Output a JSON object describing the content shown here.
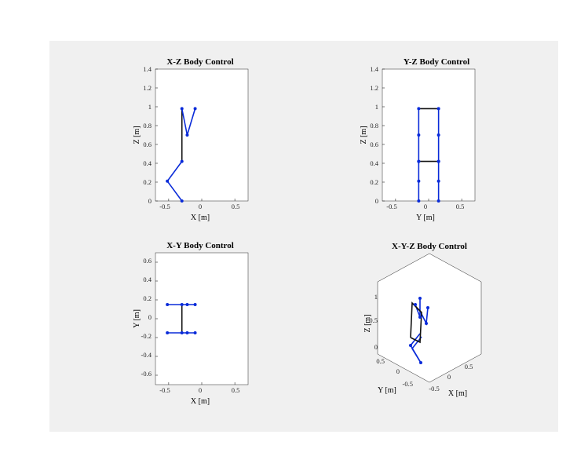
{
  "colors": {
    "legs": "#0a2bd9",
    "body": "#111111",
    "panel": "#f0f0f0"
  },
  "chart_data": [
    {
      "type": "line",
      "title": "X-Z Body Control",
      "xlabel": "X [m]",
      "ylabel": "Z [m]",
      "xlim": [
        -0.7,
        0.7
      ],
      "ylim": [
        0,
        1.4
      ],
      "xticks": [
        -0.5,
        0,
        0.5
      ],
      "xtick_labels": [
        "-0.5",
        "0",
        "0.5"
      ],
      "yticks": [
        0,
        0.2,
        0.4,
        0.6,
        0.8,
        1,
        1.2,
        1.4
      ],
      "ytick_labels": [
        "0",
        "0.2",
        "0.4",
        "0.6",
        "0.8",
        "1",
        "1.2",
        "1.4"
      ],
      "segments": [
        {
          "kind": "leg",
          "points": [
            [
              -0.3,
              0
            ],
            [
              -0.52,
              0.21
            ],
            [
              -0.3,
              0.42
            ]
          ]
        },
        {
          "kind": "body",
          "points": [
            [
              -0.3,
              0.42
            ],
            [
              -0.3,
              0.98
            ]
          ]
        },
        {
          "kind": "leg",
          "points": [
            [
              -0.3,
              0.98
            ],
            [
              -0.22,
              0.7
            ],
            [
              -0.1,
              0.98
            ]
          ]
        }
      ]
    },
    {
      "type": "line",
      "title": "Y-Z Body Control",
      "xlabel": "Y [m]",
      "ylabel": "Z [m]",
      "xlim": [
        -0.7,
        0.7
      ],
      "ylim": [
        0,
        1.4
      ],
      "xticks": [
        -0.5,
        0,
        0.5
      ],
      "xtick_labels": [
        "-0.5",
        "0",
        "0.5"
      ],
      "yticks": [
        0,
        0.2,
        0.4,
        0.6,
        0.8,
        1,
        1.2,
        1.4
      ],
      "ytick_labels": [
        "0",
        "0.2",
        "0.4",
        "0.6",
        "0.8",
        "1",
        "1.2",
        "1.4"
      ],
      "segments": [
        {
          "kind": "leg",
          "points": [
            [
              -0.15,
              0
            ],
            [
              -0.15,
              0.21
            ],
            [
              -0.15,
              0.42
            ]
          ]
        },
        {
          "kind": "leg",
          "points": [
            [
              0.15,
              0
            ],
            [
              0.15,
              0.21
            ],
            [
              0.15,
              0.42
            ]
          ]
        },
        {
          "kind": "leg",
          "points": [
            [
              -0.15,
              0.42
            ],
            [
              -0.15,
              0.7
            ],
            [
              -0.15,
              0.98
            ]
          ]
        },
        {
          "kind": "leg",
          "points": [
            [
              0.15,
              0.42
            ],
            [
              0.15,
              0.7
            ],
            [
              0.15,
              0.98
            ]
          ]
        },
        {
          "kind": "body",
          "points": [
            [
              -0.15,
              0.42
            ],
            [
              0.15,
              0.42
            ]
          ]
        },
        {
          "kind": "body",
          "points": [
            [
              -0.15,
              0.98
            ],
            [
              0.15,
              0.98
            ]
          ]
        }
      ]
    },
    {
      "type": "line",
      "title": "X-Y Body Control",
      "xlabel": "X [m]",
      "ylabel": "Y [m]",
      "xlim": [
        -0.7,
        0.7
      ],
      "ylim": [
        -0.7,
        0.7
      ],
      "xticks": [
        -0.5,
        0,
        0.5
      ],
      "xtick_labels": [
        "-0.5",
        "0",
        "0.5"
      ],
      "yticks": [
        -0.6,
        -0.4,
        -0.2,
        0,
        0.2,
        0.4,
        0.6
      ],
      "ytick_labels": [
        "-0.6",
        "-0.4",
        "-0.2",
        "0",
        "0.2",
        "0.4",
        "0.6"
      ],
      "segments": [
        {
          "kind": "leg",
          "points": [
            [
              -0.52,
              0.15
            ],
            [
              -0.3,
              0.15
            ],
            [
              -0.22,
              0.15
            ],
            [
              -0.1,
              0.15
            ]
          ]
        },
        {
          "kind": "leg",
          "points": [
            [
              -0.52,
              -0.15
            ],
            [
              -0.3,
              -0.15
            ],
            [
              -0.22,
              -0.15
            ],
            [
              -0.1,
              -0.15
            ]
          ]
        },
        {
          "kind": "body",
          "points": [
            [
              -0.3,
              0.15
            ],
            [
              -0.3,
              -0.15
            ]
          ]
        }
      ]
    },
    {
      "type": "line",
      "title": "X-Y-Z Body Control",
      "xlabel": "X [m]",
      "ylabel": "Y [m]",
      "zlabel": "Z [m]",
      "view": "3d-isometric",
      "xtick_labels": [
        "-0.5",
        "0",
        "0.5"
      ],
      "ytick_labels": [
        "-0.5",
        "0",
        "0.5"
      ],
      "ztick_labels": [
        "0",
        "0.5",
        "1"
      ]
    }
  ]
}
